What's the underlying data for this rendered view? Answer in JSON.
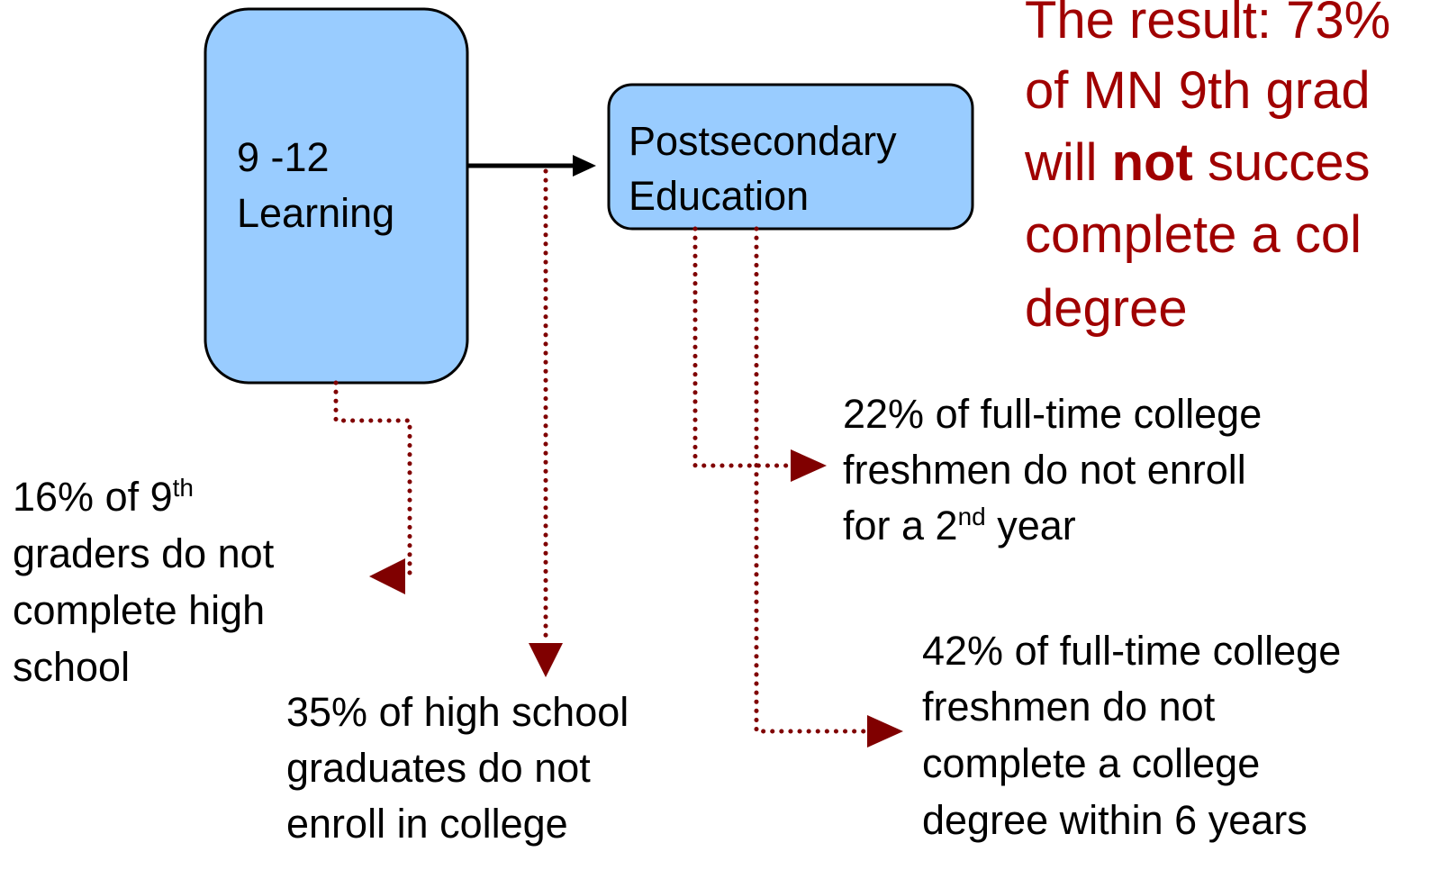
{
  "nodes": [
    {
      "label": [
        "9 -12",
        "Learning"
      ]
    },
    {
      "label": [
        "Postsecondary",
        "Education"
      ]
    }
  ],
  "result": {
    "lines": [
      [
        "The result: 73%"
      ],
      [
        "of MN 9th grad"
      ],
      [
        "will ",
        "not",
        " succes"
      ],
      [
        "complete a col"
      ],
      [
        "degree"
      ]
    ]
  },
  "annotations": [
    {
      "lines": [
        [
          "16% of 9",
          "th"
        ],
        [
          "graders do not"
        ],
        [
          "complete high"
        ],
        [
          "school"
        ]
      ]
    },
    {
      "lines": [
        [
          "35% of high school"
        ],
        [
          "graduates do not"
        ],
        [
          "enroll in college"
        ]
      ]
    },
    {
      "lines": [
        [
          "22% of full-time college"
        ],
        [
          "freshmen do not enroll"
        ],
        [
          "for a 2",
          "nd",
          " year"
        ]
      ]
    },
    {
      "lines": [
        [
          "42% of full-time college"
        ],
        [
          "freshmen do not"
        ],
        [
          "complete a college"
        ],
        [
          "degree within 6 years"
        ]
      ]
    }
  ]
}
